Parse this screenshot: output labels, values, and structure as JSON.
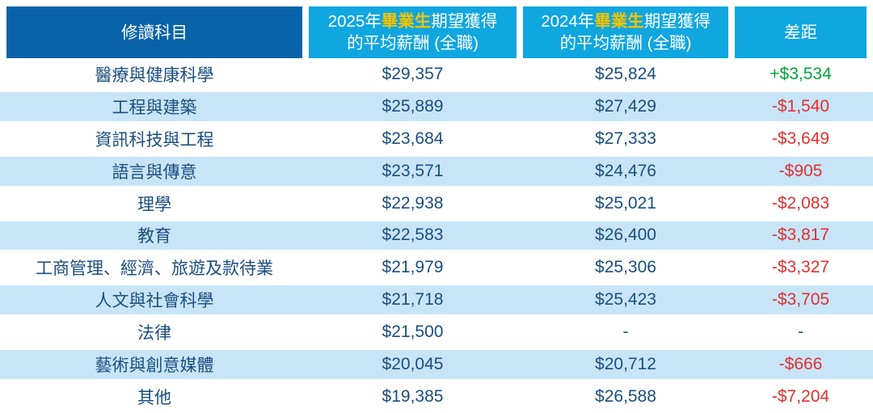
{
  "colors": {
    "header_dark_blue": "#0a63a8",
    "header_cyan": "#10a6e0",
    "highlight_yellow": "#f3c300",
    "row_stripe_blue": "#c8e5f7",
    "text_navy": "#1b4e7f",
    "positive_green": "#00a33c",
    "negative_red": "#e23030"
  },
  "header": {
    "subject": "修讀科目",
    "col2025": {
      "prefix": "2025年",
      "highlight": "畢業生",
      "suffix": "期望獲得",
      "line2": "的平均薪酬 (全職)"
    },
    "col2024": {
      "prefix": "2024年",
      "highlight": "畢業生",
      "suffix": "期望獲得",
      "line2": "的平均薪酬 (全職)"
    },
    "diff": "差距"
  },
  "rows": [
    {
      "subject": "醫療與健康科學",
      "salary_2025": "$29,357",
      "salary_2024": "$25,824",
      "diff": "+$3,534",
      "diff_type": "positive"
    },
    {
      "subject": "工程與建築",
      "salary_2025": "$25,889",
      "salary_2024": "$27,429",
      "diff": "-$1,540",
      "diff_type": "negative"
    },
    {
      "subject": "資訊科技與工程",
      "salary_2025": "$23,684",
      "salary_2024": "$27,333",
      "diff": "-$3,649",
      "diff_type": "negative"
    },
    {
      "subject": "語言與傳意",
      "salary_2025": "$23,571",
      "salary_2024": "$24,476",
      "diff": "-$905",
      "diff_type": "negative"
    },
    {
      "subject": "理學",
      "salary_2025": "$22,938",
      "salary_2024": "$25,021",
      "diff": "-$2,083",
      "diff_type": "negative"
    },
    {
      "subject": "教育",
      "salary_2025": "$22,583",
      "salary_2024": "$26,400",
      "diff": "-$3,817",
      "diff_type": "negative"
    },
    {
      "subject": "工商管理、經濟、旅遊及款待業",
      "salary_2025": "$21,979",
      "salary_2024": "$25,306",
      "diff": "-$3,327",
      "diff_type": "negative"
    },
    {
      "subject": "人文與社會科學",
      "salary_2025": "$21,718",
      "salary_2024": "$25,423",
      "diff": "-$3,705",
      "diff_type": "negative"
    },
    {
      "subject": "法律",
      "salary_2025": "$21,500",
      "salary_2024": "-",
      "diff": "-",
      "diff_type": "neutral"
    },
    {
      "subject": "藝術與創意媒體",
      "salary_2025": "$20,045",
      "salary_2024": "$20,712",
      "diff": "-$666",
      "diff_type": "negative"
    },
    {
      "subject": "其他",
      "salary_2025": "$19,385",
      "salary_2024": "$26,588",
      "diff": "-$7,204",
      "diff_type": "negative"
    }
  ],
  "chart_data": {
    "type": "table",
    "columns": [
      "修讀科目",
      "2025年畢業生期望獲得的平均薪酬 (全職)",
      "2024年畢業生期望獲得的平均薪酬 (全職)",
      "差距"
    ],
    "rows": [
      [
        "醫療與健康科學",
        29357,
        25824,
        3534
      ],
      [
        "工程與建築",
        25889,
        27429,
        -1540
      ],
      [
        "資訊科技與工程",
        23684,
        27333,
        -3649
      ],
      [
        "語言與傳意",
        23571,
        24476,
        -905
      ],
      [
        "理學",
        22938,
        25021,
        -2083
      ],
      [
        "教育",
        22583,
        26400,
        -3817
      ],
      [
        "工商管理、經濟、旅遊及款待業",
        21979,
        25306,
        -3327
      ],
      [
        "人文與社會科學",
        21718,
        25423,
        -3705
      ],
      [
        "法律",
        21500,
        null,
        null
      ],
      [
        "藝術與創意媒體",
        20045,
        20712,
        -666
      ],
      [
        "其他",
        19385,
        26588,
        -7204
      ]
    ],
    "layout_hints": {
      "striped_rows": true,
      "header_highlight_word": "畢業生",
      "diff_positive_color": "#00a33c",
      "diff_negative_color": "#e23030"
    }
  }
}
